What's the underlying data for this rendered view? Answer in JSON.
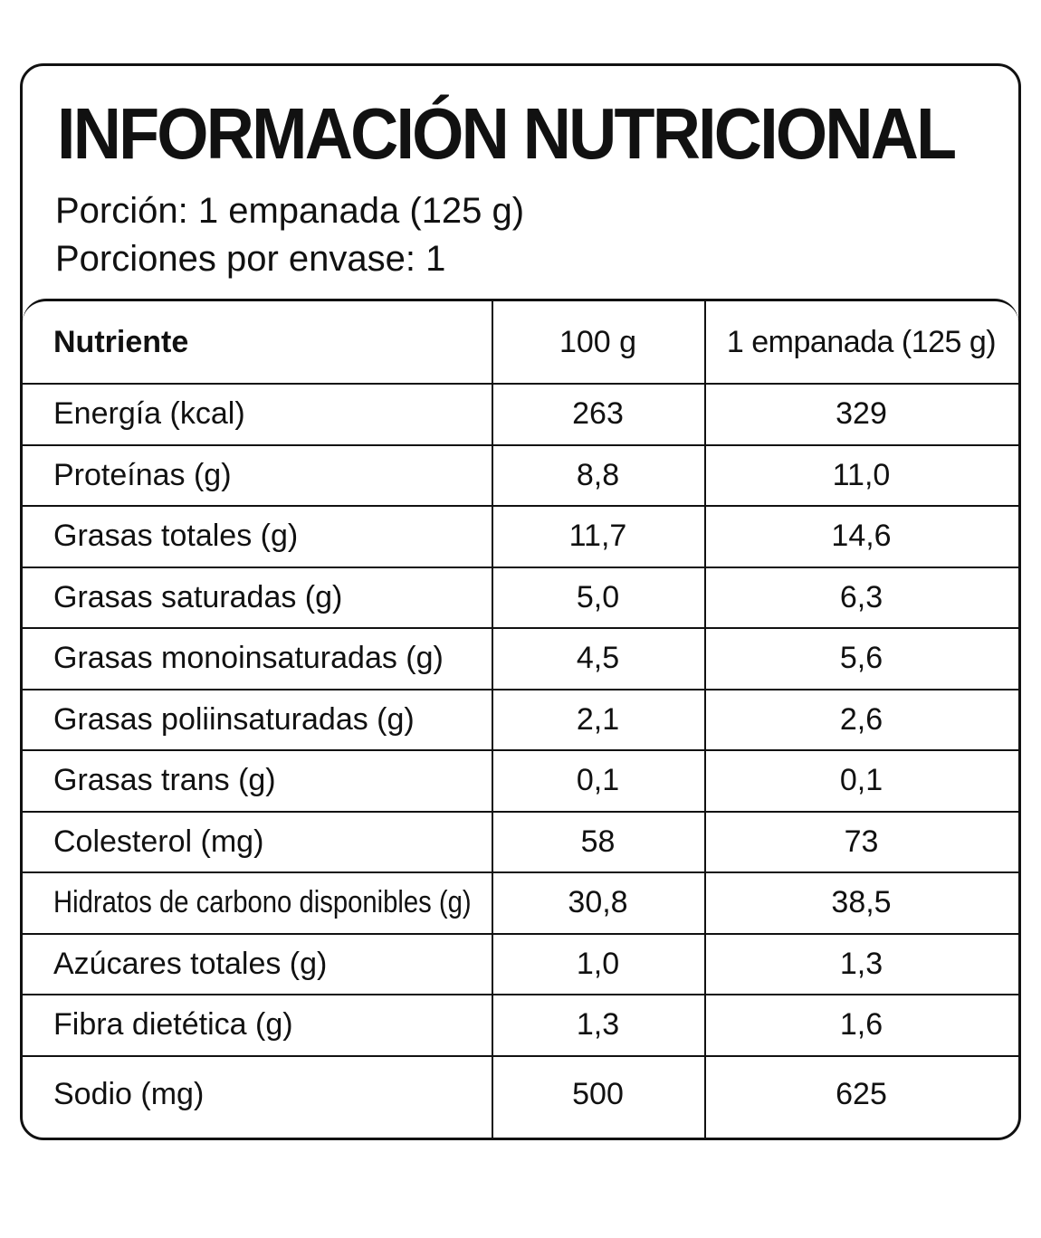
{
  "title": "INFORMACIÓN NUTRICIONAL",
  "serving_size": "Porción: 1 empanada (125 g)",
  "servings_per_container": "Porciones por envase: 1",
  "table": {
    "headers": [
      "Nutriente",
      "100 g",
      "1 empanada (125 g)"
    ],
    "rows": [
      [
        "Energía (kcal)",
        "263",
        "329"
      ],
      [
        "Proteínas (g)",
        "8,8",
        "11,0"
      ],
      [
        "Grasas totales (g)",
        "11,7",
        "14,6"
      ],
      [
        "Grasas saturadas (g)",
        "5,0",
        "6,3"
      ],
      [
        "Grasas monoinsaturadas (g)",
        "4,5",
        "5,6"
      ],
      [
        "Grasas poliinsaturadas (g)",
        "2,1",
        "2,6"
      ],
      [
        "Grasas trans (g)",
        "0,1",
        "0,1"
      ],
      [
        "Colesterol (mg)",
        "58",
        "73"
      ],
      [
        "Hidratos de carbono disponibles (g)",
        "30,8",
        "38,5"
      ],
      [
        "Azúcares totales (g)",
        "1,0",
        "1,3"
      ],
      [
        "Fibra dietética (g)",
        "1,3",
        "1,6"
      ],
      [
        "Sodio (mg)",
        "500",
        "625"
      ]
    ]
  }
}
